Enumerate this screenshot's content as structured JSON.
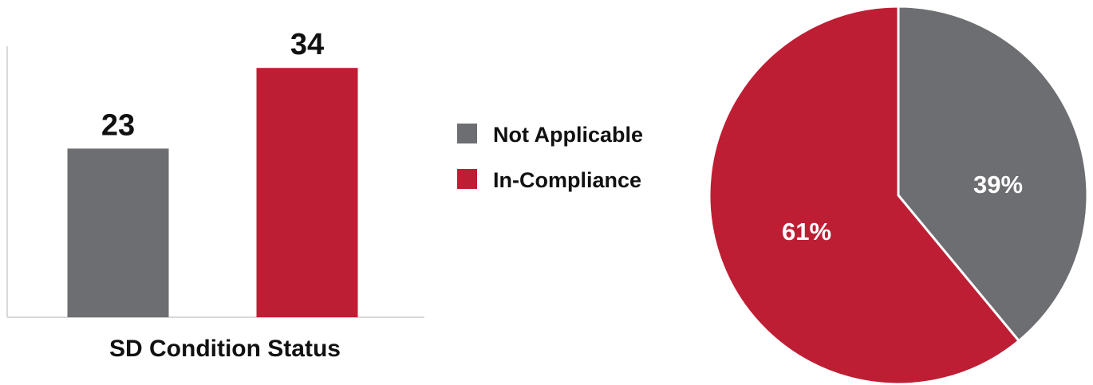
{
  "colors": {
    "grey": "#6d6e71",
    "red": "#be1e34",
    "axis": "#d9d9d9"
  },
  "chart_data": [
    {
      "type": "bar",
      "xlabel": "SD Condition Status",
      "categories": [
        "Not Applicable",
        "In-Compliance"
      ],
      "values": [
        23,
        34
      ],
      "data_labels": [
        "23",
        "34"
      ],
      "colors": [
        "#6d6e71",
        "#be1e34"
      ],
      "ylim": [
        0,
        40
      ],
      "grid": false
    },
    {
      "type": "pie",
      "slices": [
        {
          "label": "Not Applicable",
          "value": 39,
          "display": "39%",
          "color": "#6d6e71"
        },
        {
          "label": "In-Compliance",
          "value": 61,
          "display": "61%",
          "color": "#be1e34"
        }
      ]
    }
  ],
  "legend": {
    "placement": "center",
    "items": [
      {
        "label": "Not Applicable",
        "color": "#6d6e71"
      },
      {
        "label": "In-Compliance",
        "color": "#be1e34"
      }
    ]
  }
}
